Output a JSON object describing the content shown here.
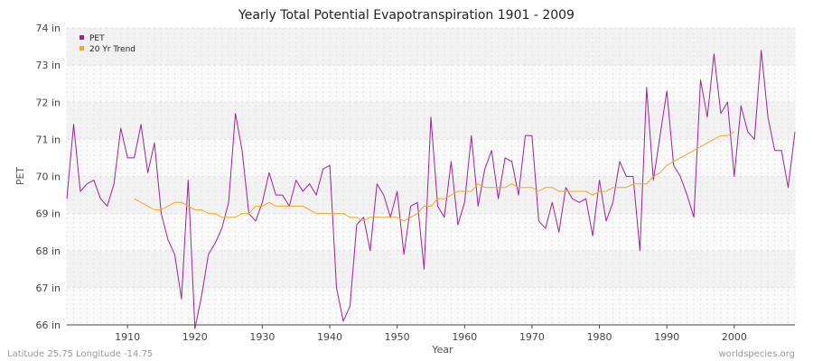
{
  "chart_data": {
    "type": "line",
    "title": "Yearly Total Potential Evapotranspiration 1901 - 2009",
    "xlabel": "Year",
    "ylabel": "PET",
    "xlim": [
      1901,
      2009
    ],
    "ylim": [
      66,
      74
    ],
    "x_ticks": [
      1910,
      1920,
      1930,
      1940,
      1950,
      1960,
      1970,
      1980,
      1990,
      2000
    ],
    "y_ticks": [
      "66 in",
      "67 in",
      "68 in",
      "69 in",
      "70 in",
      "71 in",
      "72 in",
      "73 in",
      "74 in"
    ],
    "grid": true,
    "legend_position": "top-left",
    "series": [
      {
        "name": "PET",
        "color": "#a020a0",
        "x_start": 1901,
        "values": [
          69.4,
          71.4,
          69.6,
          69.8,
          69.9,
          69.4,
          69.2,
          69.8,
          71.3,
          70.5,
          70.5,
          71.4,
          70.1,
          70.9,
          69.0,
          68.3,
          67.9,
          66.7,
          69.9,
          65.9,
          66.8,
          67.9,
          68.2,
          68.6,
          69.3,
          71.7,
          70.7,
          69.0,
          68.8,
          69.3,
          70.1,
          69.5,
          69.5,
          69.2,
          69.9,
          69.6,
          69.8,
          69.5,
          70.2,
          70.3,
          67.0,
          66.1,
          66.5,
          68.7,
          68.9,
          68.0,
          69.8,
          69.5,
          68.9,
          69.6,
          67.9,
          69.2,
          69.3,
          67.5,
          71.6,
          69.2,
          68.9,
          70.4,
          68.7,
          69.3,
          71.1,
          69.2,
          70.2,
          70.7,
          69.4,
          70.5,
          70.4,
          69.5,
          71.1,
          71.1,
          68.8,
          68.6,
          69.3,
          68.5,
          69.7,
          69.4,
          69.3,
          69.4,
          68.4,
          69.9,
          68.8,
          69.3,
          70.4,
          70.0,
          70.0,
          68.0,
          72.4,
          69.9,
          71.1,
          72.3,
          70.3,
          70.0,
          69.5,
          68.9,
          72.6,
          71.6,
          73.3,
          71.7,
          72.0,
          70.0,
          71.9,
          71.2,
          71.0,
          73.4,
          71.6,
          70.7,
          70.7,
          69.7,
          71.2
        ]
      },
      {
        "name": "20 Yr Trend",
        "color": "#f5a623",
        "x_start": 1911,
        "values": [
          69.4,
          69.3,
          69.2,
          69.1,
          69.1,
          69.2,
          69.3,
          69.3,
          69.2,
          69.1,
          69.1,
          69.0,
          69.0,
          68.9,
          68.9,
          68.9,
          69.0,
          69.0,
          69.2,
          69.2,
          69.3,
          69.2,
          69.2,
          69.2,
          69.2,
          69.2,
          69.1,
          69.0,
          69.0,
          69.0,
          69.0,
          69.0,
          68.9,
          68.9,
          68.8,
          68.9,
          68.9,
          68.9,
          68.9,
          68.9,
          68.8,
          68.9,
          69.0,
          69.2,
          69.2,
          69.4,
          69.4,
          69.5,
          69.6,
          69.6,
          69.6,
          69.8,
          69.7,
          69.7,
          69.7,
          69.7,
          69.8,
          69.7,
          69.7,
          69.7,
          69.6,
          69.7,
          69.7,
          69.6,
          69.6,
          69.6,
          69.6,
          69.6,
          69.5,
          69.6,
          69.6,
          69.7,
          69.7,
          69.7,
          69.8,
          69.8,
          69.8,
          70.0,
          70.1,
          70.3,
          70.4,
          70.5,
          70.6,
          70.7,
          70.8,
          70.9,
          71.0,
          71.1,
          71.1,
          71.2
        ]
      }
    ]
  },
  "footer": {
    "location": "Latitude 25.75 Longitude -14.75",
    "source": "worldspecies.org"
  }
}
